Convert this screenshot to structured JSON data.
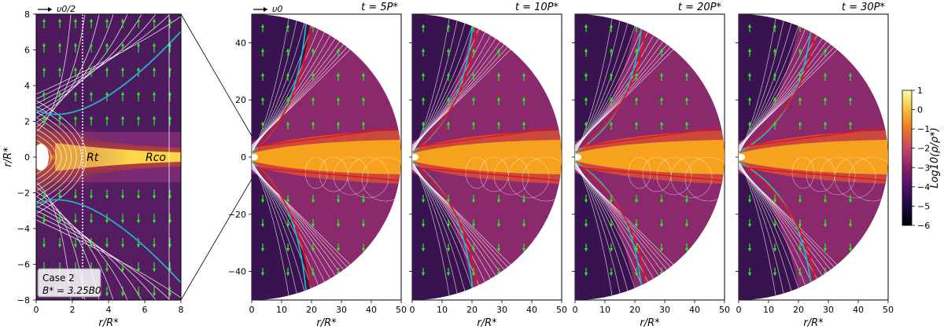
{
  "panels": [
    {
      "id": "zoom",
      "title": "",
      "vector_ref": "υ0/2",
      "xlim": [
        0,
        8
      ],
      "ylim": [
        -8,
        8
      ],
      "xticks": [
        "0",
        "2",
        "4",
        "6",
        "8"
      ],
      "yticks": [
        "8",
        "6",
        "4",
        "2",
        "0",
        "−2",
        "−4",
        "−6",
        "−8"
      ],
      "xlabel": "r/R*",
      "ylabel": "r/R*",
      "annotations": [
        "Rt",
        "Rco"
      ],
      "case_box": {
        "line1": "Case 2",
        "line2": "B* = 3.25B0"
      }
    },
    {
      "id": "t5",
      "title": "t = 5P*",
      "vector_ref": "υ0",
      "xlim": [
        0,
        50
      ],
      "ylim": [
        -50,
        50
      ],
      "xticks": [
        "0",
        "10",
        "20",
        "30",
        "40",
        "50"
      ],
      "yticks": [
        "40",
        "20",
        "0",
        "−20",
        "−40"
      ],
      "xlabel": "r/R*"
    },
    {
      "id": "t10",
      "title": "t = 10P*",
      "xlim": [
        0,
        50
      ],
      "ylim": [
        -50,
        50
      ],
      "xticks": [
        "0",
        "10",
        "20",
        "30",
        "40",
        "50"
      ],
      "xlabel": "r/R*"
    },
    {
      "id": "t20",
      "title": "t = 20P*",
      "xlim": [
        0,
        50
      ],
      "ylim": [
        -50,
        50
      ],
      "xticks": [
        "0",
        "10",
        "20",
        "30",
        "40",
        "50"
      ],
      "xlabel": "r/R*"
    },
    {
      "id": "t30",
      "title": "t = 30P*",
      "xlim": [
        0,
        50
      ],
      "ylim": [
        -50,
        50
      ],
      "xticks": [
        "0",
        "10",
        "20",
        "30",
        "40",
        "50"
      ],
      "xlabel": "r/R*"
    }
  ],
  "colorbar": {
    "label": "Log10(ρ/ρ*)",
    "range": [
      -6,
      1
    ],
    "ticks": [
      "1",
      "0",
      "−1",
      "−2",
      "−3",
      "−4",
      "−5",
      "−6"
    ],
    "colormap": "inferno"
  },
  "colors": {
    "disk": "#f6a21e",
    "halo": "#8a2a6c",
    "corona": "#2a0f4a",
    "field_lines": "#ffffff",
    "velocity": "#22ee22",
    "cyan": "#24b3c6",
    "red": "#ee1111"
  }
}
